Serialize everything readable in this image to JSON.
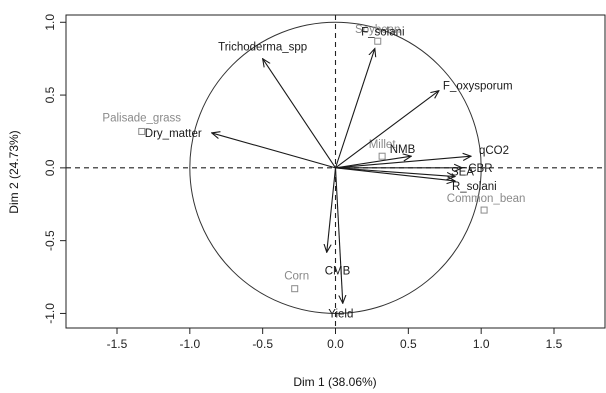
{
  "chart_data": {
    "type": "scatter",
    "title": "",
    "xlabel": "Dim 1 (38.06%)",
    "ylabel": "Dim 2 (24.73%)",
    "xlim": [
      -1.85,
      1.85
    ],
    "ylim": [
      -1.1,
      1.05
    ],
    "x_ticks": [
      -1.5,
      -1.0,
      -0.5,
      0.0,
      0.5,
      1.0,
      1.5
    ],
    "x_tick_labels": [
      "-1.5",
      "-1.0",
      "-0.5",
      "0.0",
      "0.5",
      "1.0",
      "1.5"
    ],
    "y_ticks": [
      -1.0,
      -0.5,
      0.0,
      0.5,
      1.0
    ],
    "y_tick_labels": [
      "-1.0",
      "-0.5",
      "0.0",
      "0.5",
      "1.0"
    ],
    "grid": false,
    "correlation_circle": {
      "radius": 1.0
    },
    "reference_lines": {
      "x": 0.0,
      "y": 0.0,
      "style": "dashed"
    },
    "vectors": [
      {
        "label": "Trichoderma_spp",
        "x": -0.5,
        "y": 0.75,
        "color": "#1a1a1a"
      },
      {
        "label": "F_solani",
        "x": 0.27,
        "y": 0.82,
        "color": "#1a1a1a"
      },
      {
        "label": "F_oxysporum",
        "x": 0.71,
        "y": 0.53,
        "color": "#1a1a1a"
      },
      {
        "label": "Dry_matter",
        "x": -0.85,
        "y": 0.24,
        "color": "#1a1a1a"
      },
      {
        "label": "NMB",
        "x": 0.52,
        "y": 0.08,
        "color": "#1a1a1a"
      },
      {
        "label": "qCO2",
        "x": 0.93,
        "y": 0.08,
        "color": "#1a1a1a"
      },
      {
        "label": "CBR",
        "x": 0.87,
        "y": 0.0,
        "color": "#1a1a1a"
      },
      {
        "label": "SEA",
        "x": 0.82,
        "y": -0.06,
        "color": "#1a1a1a"
      },
      {
        "label": "R_solani",
        "x": 0.82,
        "y": -0.09,
        "color": "#1a1a1a"
      },
      {
        "label": "CMB",
        "x": -0.06,
        "y": -0.58,
        "color": "#1a1a1a"
      },
      {
        "label": "Yield",
        "x": 0.05,
        "y": -0.93,
        "color": "#1a1a1a"
      }
    ],
    "points": [
      {
        "label": "Soybean",
        "x": 0.29,
        "y": 0.87,
        "color": "#8a8a8a"
      },
      {
        "label": "Palisade_grass",
        "x": -1.33,
        "y": 0.25,
        "color": "#8a8a8a"
      },
      {
        "label": "Millet",
        "x": 0.32,
        "y": 0.08,
        "color": "#8a8a8a"
      },
      {
        "label": "Common_bean",
        "x": 1.02,
        "y": -0.29,
        "color": "#8a8a8a"
      },
      {
        "label": "Corn",
        "x": -0.28,
        "y": -0.83,
        "color": "#8a8a8a"
      }
    ]
  }
}
